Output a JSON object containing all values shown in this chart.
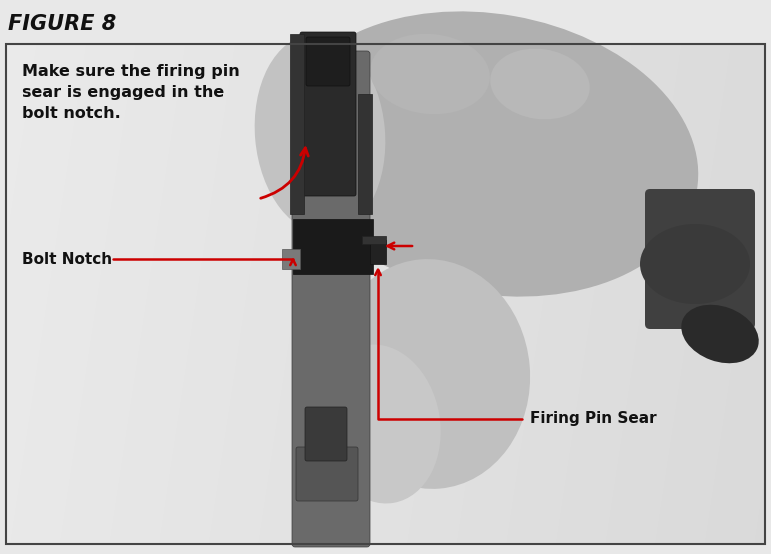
{
  "figure_title": "FIGURE 8",
  "title_fontsize": 15,
  "title_style": "italic",
  "title_weight": "bold",
  "bg_color": "#e8e8e8",
  "panel_bg": "#dcdcdc",
  "border_color": "#444444",
  "text_color": "#111111",
  "arrow_color": "#cc0000",
  "instruction_text": "Make sure the firing pin\nsear is engaged in the\nbolt notch.",
  "instruction_fontsize": 11.5,
  "instruction_weight": "bold",
  "label_bolt_notch": "Bolt Notch",
  "label_firing_pin": "Firing Pin Sear",
  "label_fontsize": 11,
  "label_weight": "bold",
  "fig_width": 7.71,
  "fig_height": 5.54,
  "dpi": 100
}
